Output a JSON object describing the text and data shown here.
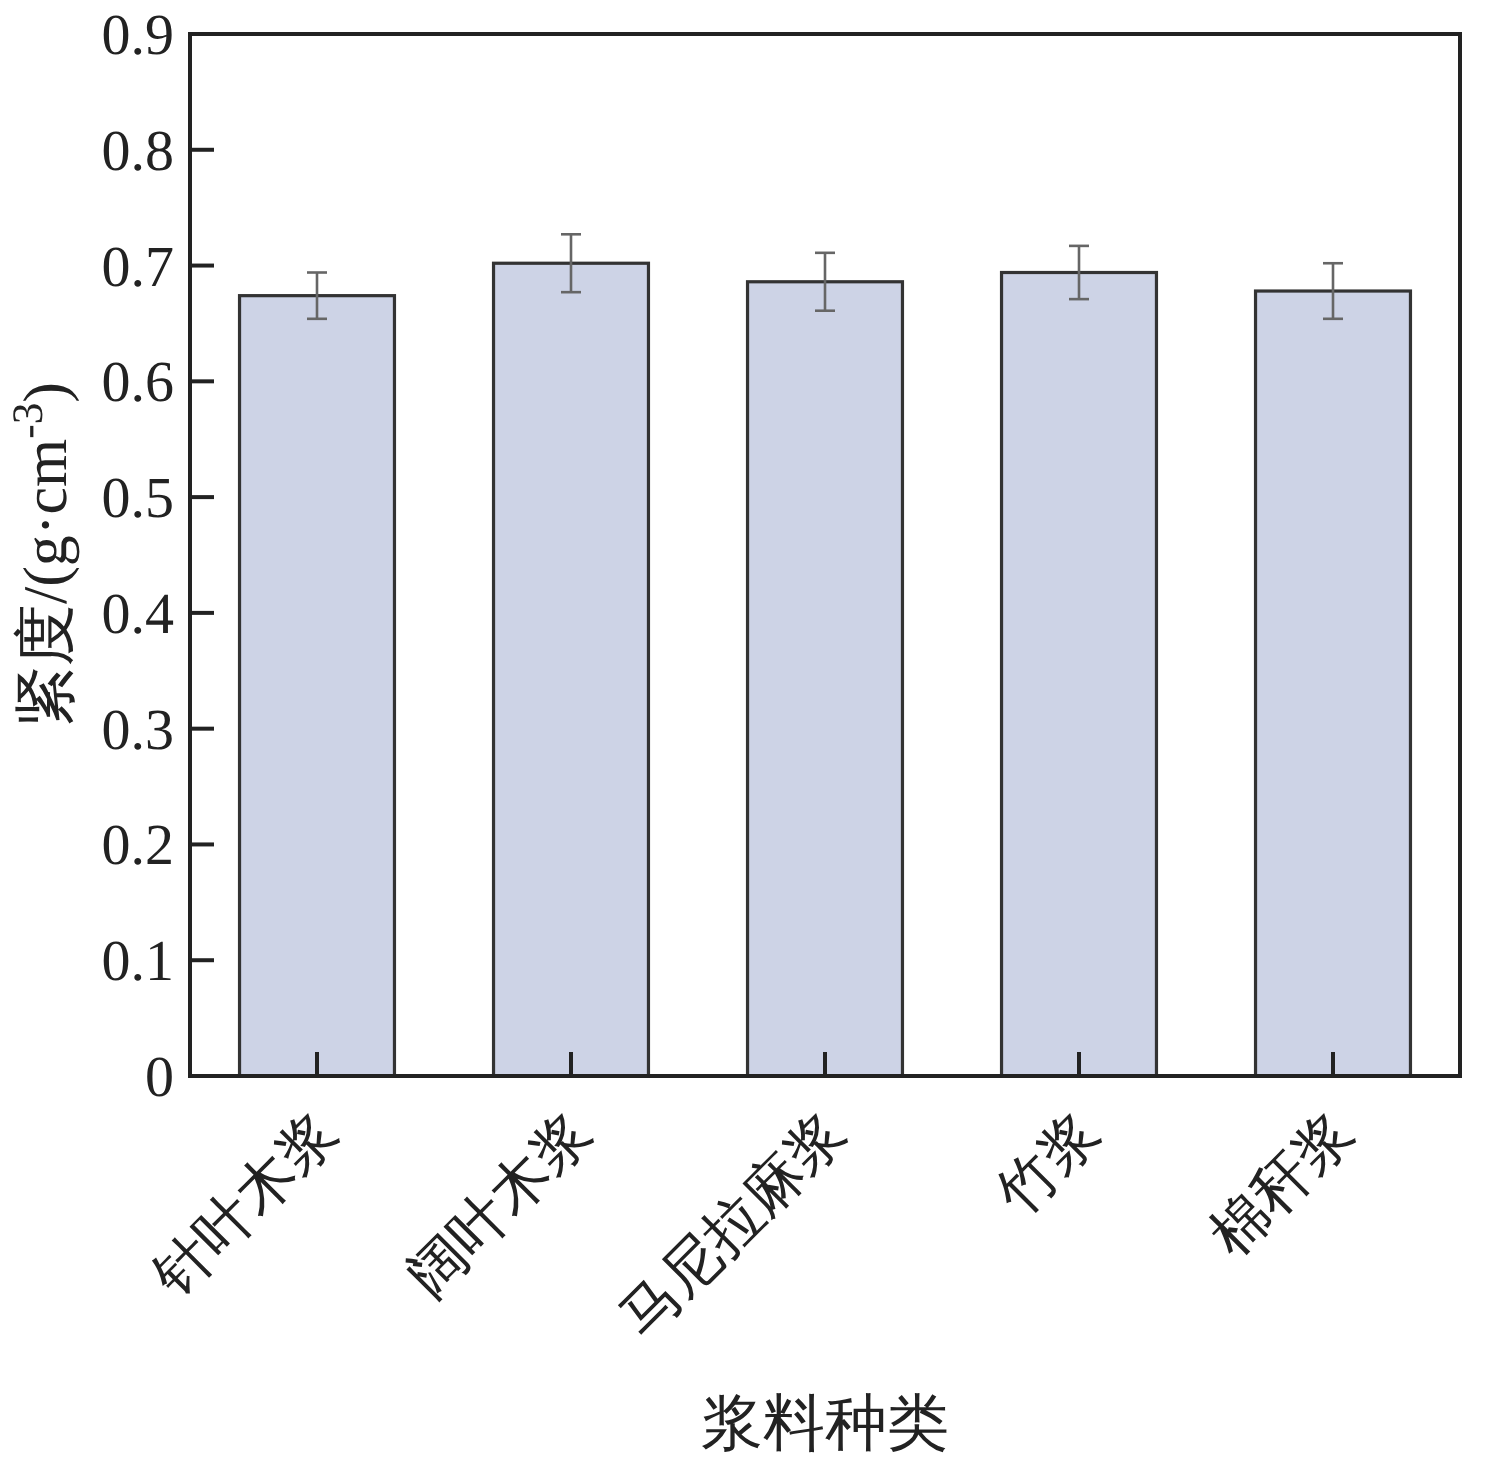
{
  "chart_data": {
    "type": "bar",
    "xlabel": "浆料种类",
    "ylabel": "紧度/(g·cm$^{-3}$)",
    "categories": [
      "针叶木浆",
      "阔叶木浆",
      "马尼拉麻浆",
      "竹浆",
      "棉秆浆"
    ],
    "values": [
      0.674,
      0.702,
      0.686,
      0.694,
      0.678
    ],
    "errors": [
      0.02,
      0.025,
      0.025,
      0.023,
      0.024
    ],
    "color": "#cdd3e6",
    "ylim": [
      0,
      0.9
    ],
    "yticks": [
      0,
      0.1,
      0.2,
      0.3,
      0.4,
      0.5,
      0.6,
      0.7,
      0.8,
      0.9
    ],
    "grid": false
  }
}
